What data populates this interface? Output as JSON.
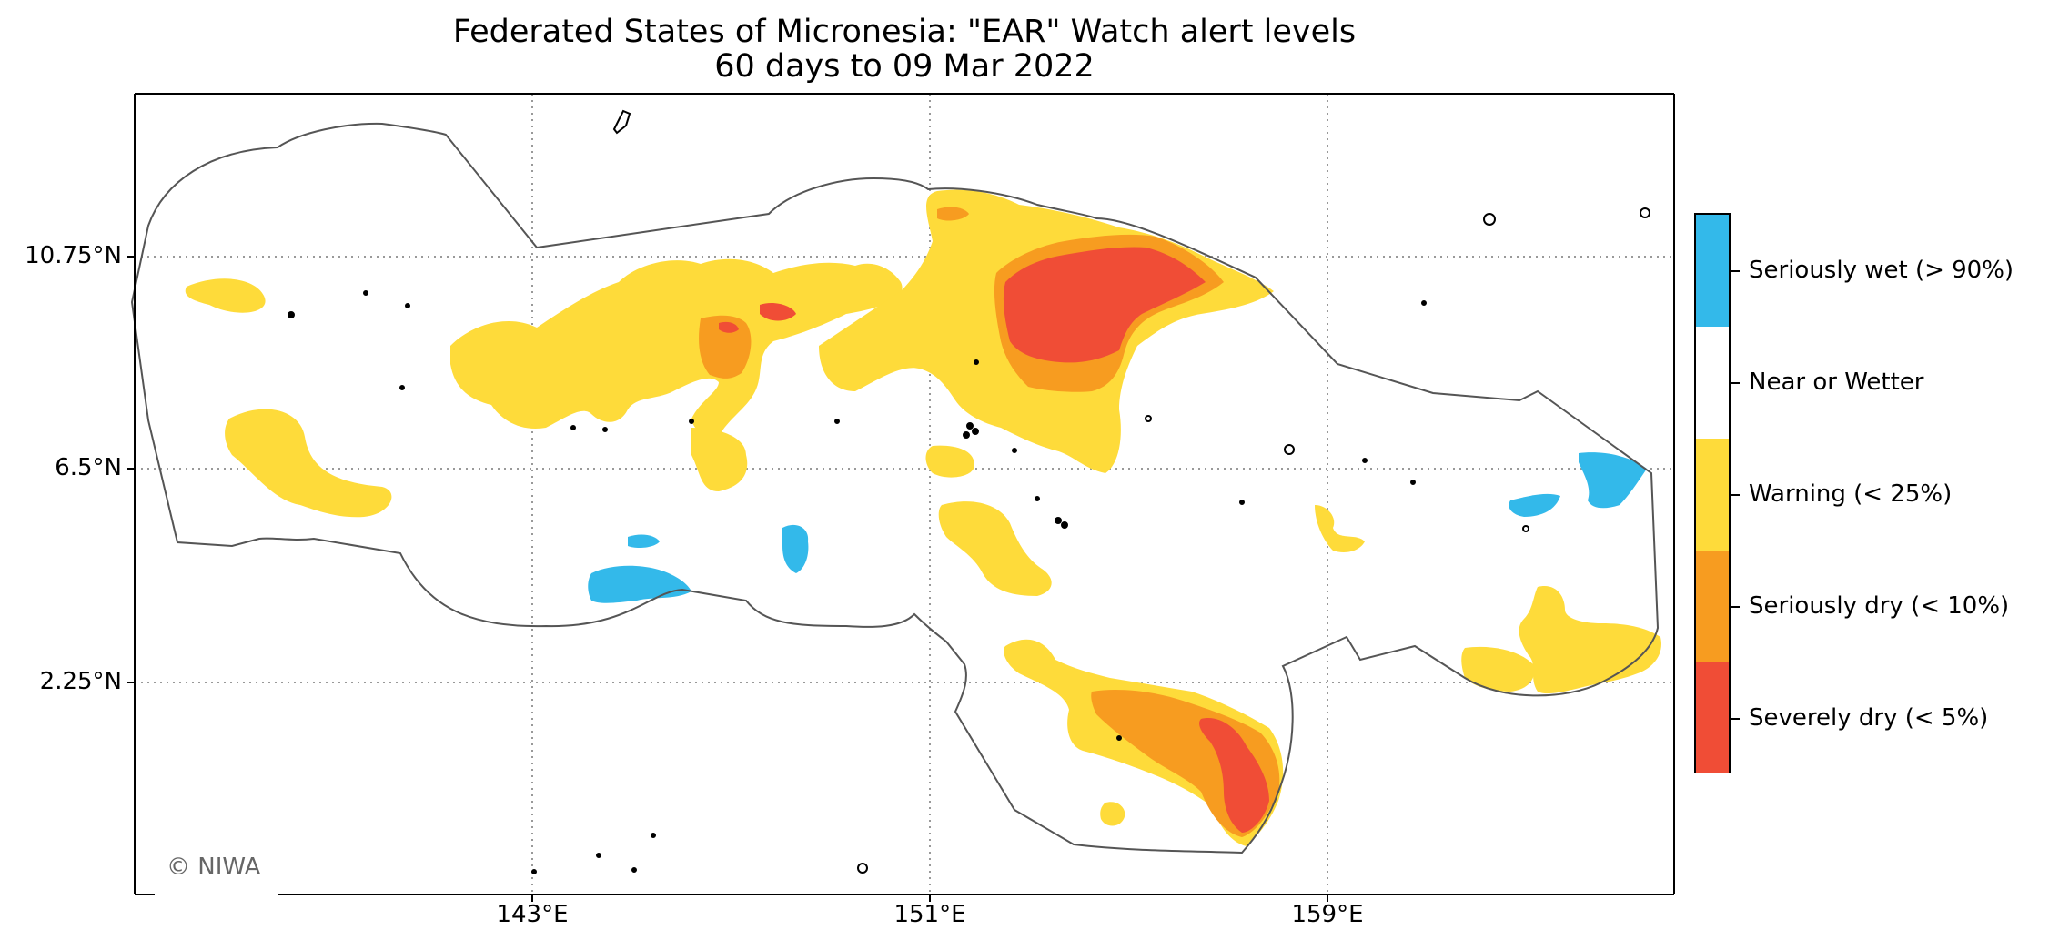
{
  "title_line1": "Federated States of Micronesia: \"EAR\" Watch alert levels",
  "title_line2": "60 days to 09 Mar 2022",
  "credit": "© NIWA",
  "axes": {
    "lat_ticks": [
      "10.75°N",
      "6.5°N",
      "2.25°N"
    ],
    "lon_ticks": [
      "143°E",
      "151°E",
      "159°E"
    ]
  },
  "legend": [
    {
      "label": "Seriously wet (> 90%)",
      "color": "#33b9ea"
    },
    {
      "label": "Near or Wetter",
      "color": "#ffffff"
    },
    {
      "label": "Warning (< 25%)",
      "color": "#fedb3a"
    },
    {
      "label": "Seriously dry (< 10%)",
      "color": "#f79c20"
    },
    {
      "label": "Severely dry (< 5%)",
      "color": "#f04d36"
    }
  ],
  "colors": {
    "boundary": "#555555",
    "grid": "#999999",
    "land": "#000000"
  }
}
